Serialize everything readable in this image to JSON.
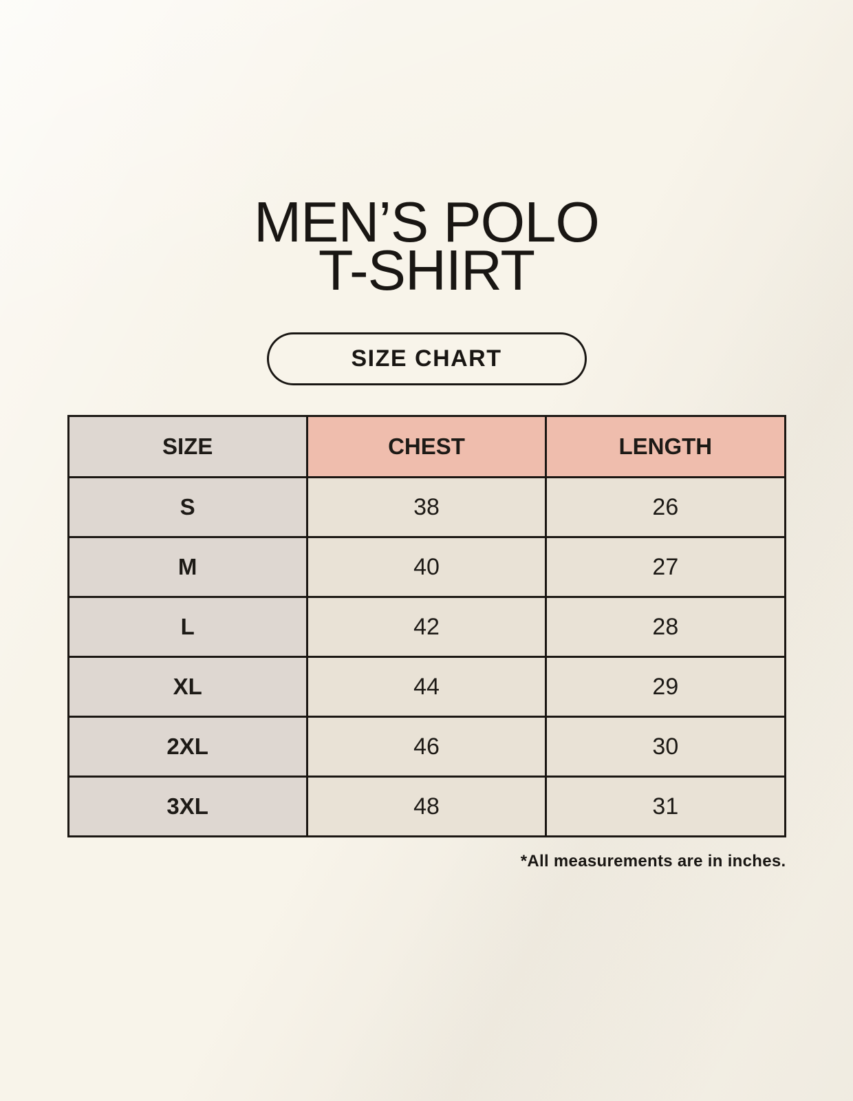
{
  "page": {
    "title_line1": "MEN’S POLO",
    "title_line2": "T-SHIRT",
    "badge_label": "SIZE CHART",
    "footnote": "*All measurements are in inches."
  },
  "colors": {
    "page_background": "#F8F4EA",
    "size_column_bg": "#DED7D1",
    "measure_header_bg": "#EFBDAD",
    "data_cell_bg": "#E9E2D6",
    "table_border": "#1B1713",
    "text": "#191613"
  },
  "table": {
    "columns": [
      "SIZE",
      "CHEST",
      "LENGTH"
    ],
    "rows": [
      [
        "S",
        "38",
        "26"
      ],
      [
        "M",
        "40",
        "27"
      ],
      [
        "L",
        "42",
        "28"
      ],
      [
        "XL",
        "44",
        "29"
      ],
      [
        "2XL",
        "46",
        "30"
      ],
      [
        "3XL",
        "48",
        "31"
      ]
    ]
  },
  "chart_data": {
    "type": "table",
    "title": "MEN’S POLO T-SHIRT — SIZE CHART",
    "columns": [
      "SIZE",
      "CHEST",
      "LENGTH"
    ],
    "rows": [
      {
        "size": "S",
        "chest": 38,
        "length": 26
      },
      {
        "size": "M",
        "chest": 40,
        "length": 27
      },
      {
        "size": "L",
        "chest": 42,
        "length": 28
      },
      {
        "size": "XL",
        "chest": 44,
        "length": 29
      },
      {
        "size": "2XL",
        "chest": 46,
        "length": 30
      },
      {
        "size": "3XL",
        "chest": 48,
        "length": 31
      }
    ],
    "units": "inches",
    "notes": "*All measurements are in inches."
  }
}
